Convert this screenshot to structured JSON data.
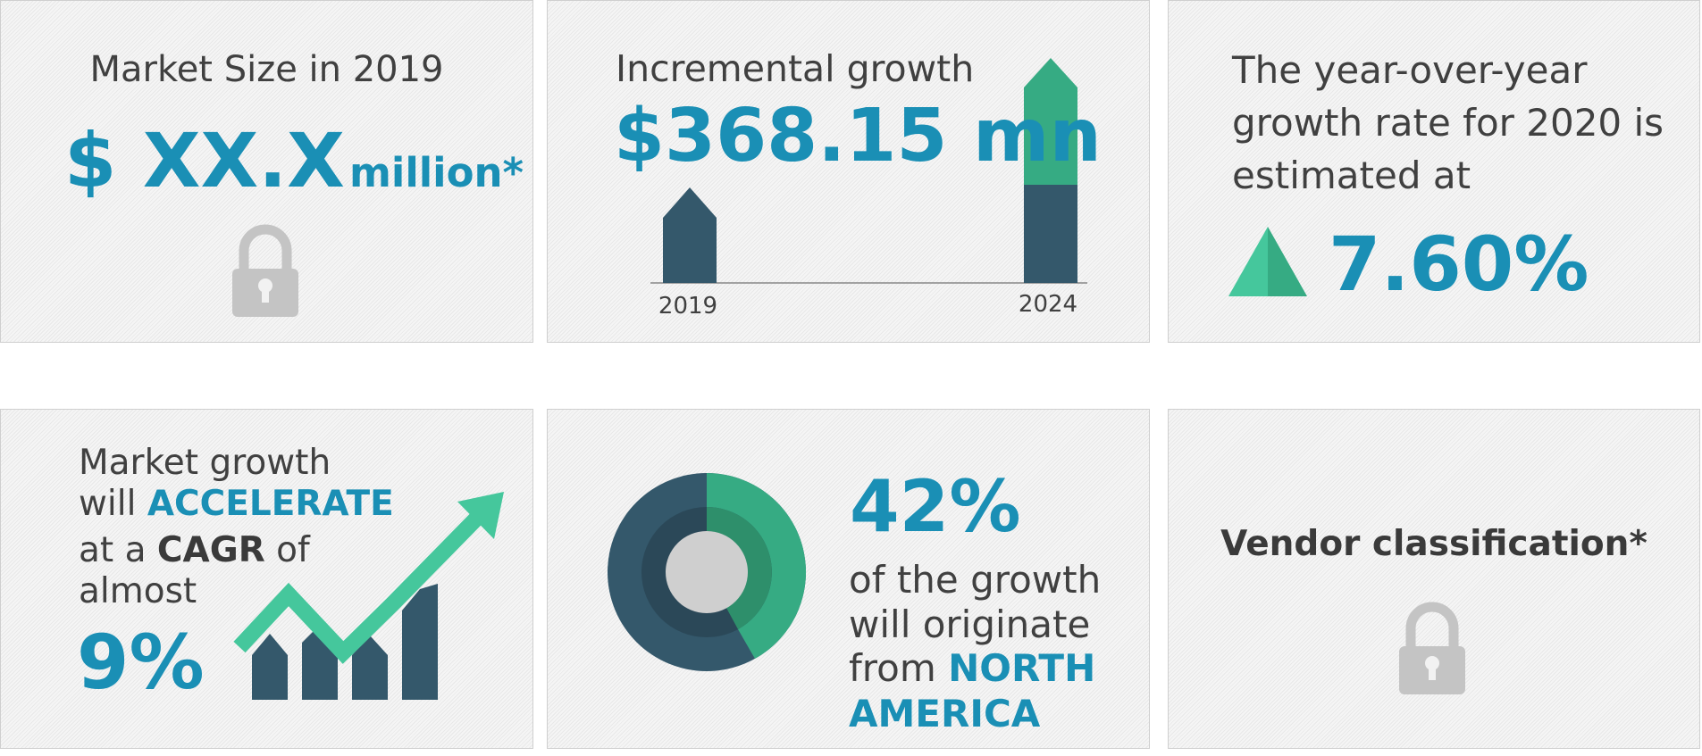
{
  "cards": [
    {
      "title": "Market Size in 2019",
      "value": "$ XX.X",
      "unit": "million*"
    },
    {
      "title": "Incremental growth",
      "value": "$368.15 mn",
      "start_label": "2019",
      "end_label": "2024"
    },
    {
      "lines": [
        "The year-over-year",
        "growth rate for 2020 is",
        "estimated at"
      ],
      "value": "7.60%"
    },
    {
      "line1": "Market growth",
      "line2a": "will",
      "line2b": "ACCELERATE",
      "line3a": "at a",
      "line3b": "CAGR",
      "line3c": "of",
      "line4": "almost",
      "value": "9%"
    },
    {
      "value": "42%",
      "lines": [
        "of the growth",
        "will originate"
      ],
      "line3a": "from",
      "line3b": "NORTH",
      "line4": "AMERICA"
    },
    {
      "title": "Vendor classification*"
    }
  ]
}
